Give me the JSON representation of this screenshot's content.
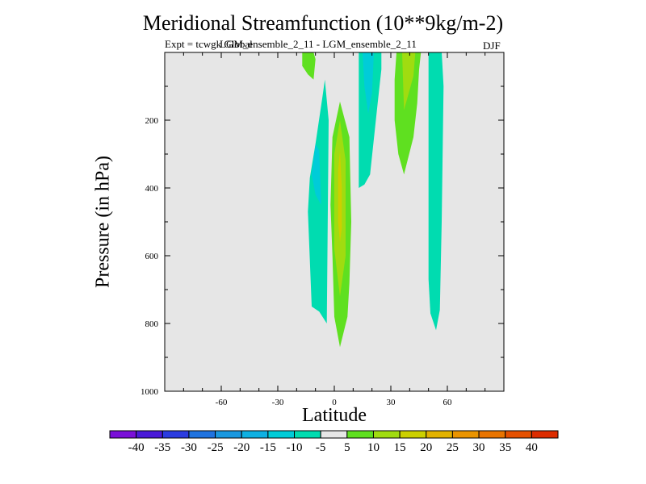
{
  "chart_data": {
    "type": "contour",
    "title": "Meridional Streamfunction (10**9kg/m-2)",
    "experiment_label": "Expt = tcwgk Global",
    "comparison_label": "LGM_ensemble_2_11 - LGM_ensemble_2_11",
    "season": "DJF",
    "xlabel": "Latitude",
    "ylabel": "Pressure (in hPa)",
    "xlim": [
      -90,
      90
    ],
    "ylim": [
      1000,
      0
    ],
    "x_ticks": [
      -60,
      -30,
      0,
      30,
      60
    ],
    "x_tick_labels": [
      "-60",
      "-30",
      "0",
      "30",
      "60"
    ],
    "y_ticks": [
      200,
      400,
      600,
      800,
      1000
    ],
    "y_tick_labels": [
      "200",
      "400",
      "600",
      "800",
      "1000"
    ],
    "background_color": "#e6e6e6",
    "levels": [
      -45,
      -40,
      -35,
      -30,
      -25,
      -20,
      -15,
      -10,
      -5,
      5,
      10,
      15,
      20,
      25,
      30,
      35,
      40,
      45
    ],
    "colorbar_labels": [
      "-40",
      "-35",
      "-30",
      "-25",
      "-20",
      "-15",
      "-10",
      "-5",
      "5",
      "10",
      "15",
      "20",
      "25",
      "30",
      "35",
      "40"
    ],
    "colorbar_colors": [
      "#7a10d8",
      "#4a1ad8",
      "#2b3ce0",
      "#1f73e0",
      "#1a98e0",
      "#0fb0e2",
      "#00ccd8",
      "#00dcb0",
      "#e6e6e6",
      "#5fe020",
      "#a0dc10",
      "#ccd000",
      "#e2b200",
      "#ea9400",
      "#e87400",
      "#e45000",
      "#dc2c00"
    ],
    "regions": [
      {
        "name": "band-nh-subtropical-outer",
        "level_range": [
          5,
          10
        ],
        "color": "#5fe020",
        "points": [
          [
            -17,
            0
          ],
          [
            -11,
            0
          ],
          [
            -10,
            20
          ],
          [
            -11,
            80
          ],
          [
            -14,
            65
          ],
          [
            -17,
            40
          ]
        ]
      },
      {
        "name": "band-sh-negative",
        "level_range": [
          -10,
          -5
        ],
        "color": "#00dcb0",
        "points": [
          [
            -5,
            80
          ],
          [
            -3,
            200
          ],
          [
            -4,
            800
          ],
          [
            -8,
            765
          ],
          [
            -12,
            750
          ],
          [
            -14,
            470
          ],
          [
            -13,
            370
          ],
          [
            -10,
            270
          ],
          [
            -6,
            120
          ]
        ]
      },
      {
        "name": "band-sh-negative-core",
        "level_range": [
          -15,
          -10
        ],
        "color": "#00ccd8",
        "points": [
          [
            -10,
            270
          ],
          [
            -8,
            290
          ],
          [
            -7,
            450
          ],
          [
            -10,
            420
          ],
          [
            -12,
            360
          ]
        ]
      },
      {
        "name": "band-equatorial-positive",
        "level_range": [
          5,
          10
        ],
        "color": "#5fe020",
        "points": [
          [
            3,
            145
          ],
          [
            8,
            250
          ],
          [
            9,
            500
          ],
          [
            8,
            680
          ],
          [
            7,
            780
          ],
          [
            3,
            870
          ],
          [
            0,
            780
          ],
          [
            -1,
            600
          ],
          [
            -2,
            450
          ],
          [
            -1,
            250
          ]
        ]
      },
      {
        "name": "band-equatorial-positive-core",
        "level_range": [
          10,
          15
        ],
        "color": "#a0dc10",
        "points": [
          [
            3,
            200
          ],
          [
            6,
            320
          ],
          [
            6,
            600
          ],
          [
            3,
            720
          ],
          [
            0,
            580
          ],
          [
            0,
            300
          ]
        ]
      },
      {
        "name": "band-equatorial-positive-inner",
        "level_range": [
          15,
          20
        ],
        "color": "#ccd000",
        "points": [
          [
            3,
            290
          ],
          [
            4,
            400
          ],
          [
            4,
            520
          ],
          [
            3,
            560
          ],
          [
            2,
            500
          ],
          [
            2,
            350
          ]
        ]
      },
      {
        "name": "band-nh-negative",
        "level_range": [
          -10,
          -5
        ],
        "color": "#00dcb0",
        "points": [
          [
            13,
            0
          ],
          [
            25,
            0
          ],
          [
            25,
            50
          ],
          [
            23,
            150
          ],
          [
            19,
            360
          ],
          [
            16,
            390
          ],
          [
            13,
            400
          ]
        ]
      },
      {
        "name": "band-nh-negative-core",
        "level_range": [
          -15,
          -10
        ],
        "color": "#00ccd8",
        "points": [
          [
            15,
            0
          ],
          [
            21,
            0
          ],
          [
            20,
            120
          ],
          [
            18,
            180
          ],
          [
            16,
            100
          ]
        ]
      },
      {
        "name": "band-nh-subtropical-positive",
        "level_range": [
          5,
          10
        ],
        "color": "#5fe020",
        "points": [
          [
            33,
            0
          ],
          [
            46,
            0
          ],
          [
            45,
            50
          ],
          [
            44,
            150
          ],
          [
            42,
            250
          ],
          [
            37,
            360
          ],
          [
            34,
            300
          ],
          [
            32,
            200
          ],
          [
            32,
            80
          ]
        ]
      },
      {
        "name": "band-nh-subtropical-positive-core",
        "level_range": [
          10,
          15
        ],
        "color": "#a0dc10",
        "points": [
          [
            36,
            0
          ],
          [
            43,
            0
          ],
          [
            42,
            70
          ],
          [
            39,
            130
          ],
          [
            37,
            170
          ]
        ]
      },
      {
        "name": "band-nh-midlatitude-negative",
        "level_range": [
          -10,
          -5
        ],
        "color": "#00dcb0",
        "points": [
          [
            50,
            0
          ],
          [
            57,
            0
          ],
          [
            58,
            100
          ],
          [
            57,
            500
          ],
          [
            56,
            760
          ],
          [
            54,
            820
          ],
          [
            51,
            770
          ],
          [
            50,
            670
          ],
          [
            50,
            200
          ]
        ]
      }
    ]
  }
}
